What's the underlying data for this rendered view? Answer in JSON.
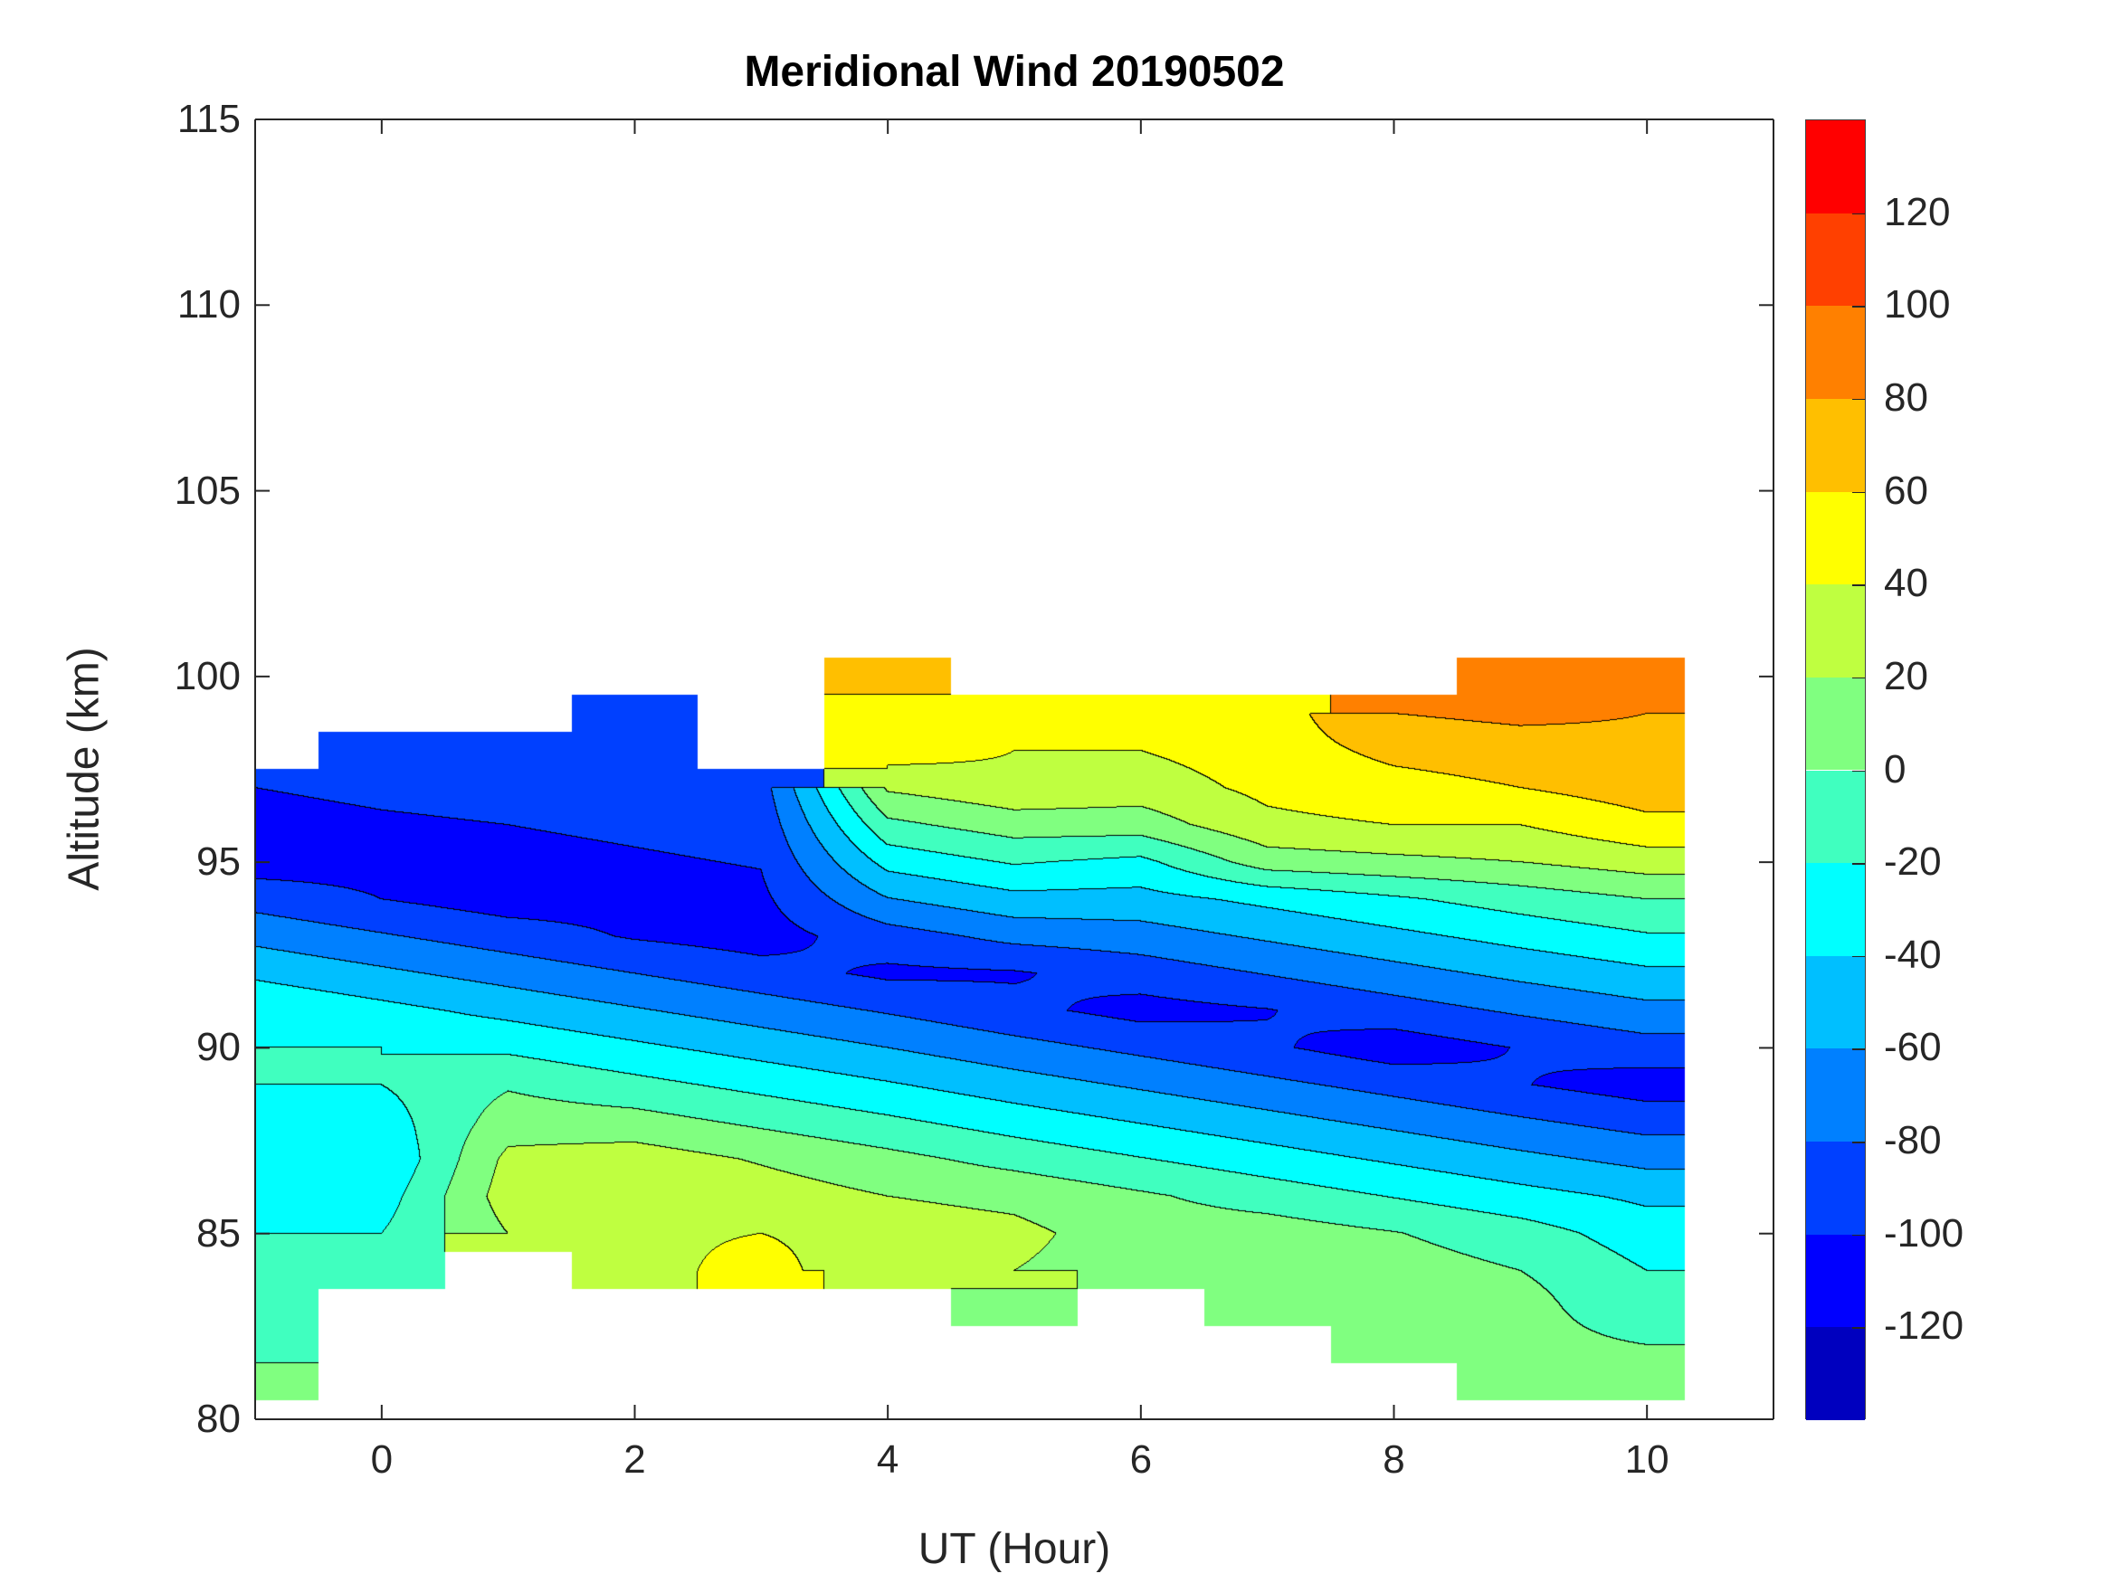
{
  "chart_data": {
    "type": "heatmap",
    "subtype": "filled-contour",
    "title": "Meridional Wind 20190502",
    "xlabel": "UT (Hour)",
    "ylabel": "Altitude (km)",
    "xlim": [
      -1,
      11
    ],
    "ylim": [
      80,
      115
    ],
    "xticks": [
      0,
      2,
      4,
      6,
      8,
      10
    ],
    "xtick_labels": [
      "0",
      "2",
      "4",
      "6",
      "8",
      "10"
    ],
    "yticks": [
      80,
      85,
      90,
      95,
      100,
      105,
      110,
      115
    ],
    "ytick_labels": [
      "80",
      "85",
      "90",
      "95",
      "100",
      "105",
      "110",
      "115"
    ],
    "grid": false,
    "colorbar": {
      "range": [
        -140,
        140
      ],
      "levels": [
        -140,
        -120,
        -100,
        -80,
        -60,
        -40,
        -20,
        0,
        20,
        40,
        60,
        80,
        100,
        120,
        140
      ],
      "ticks": [
        -120,
        -100,
        -80,
        -60,
        -40,
        -20,
        0,
        20,
        40,
        60,
        80,
        100,
        120
      ],
      "tick_labels": [
        "-120",
        "-100",
        "-80",
        "-60",
        "-40",
        "-20",
        "0",
        "20",
        "40",
        "60",
        "80",
        "100",
        "120"
      ],
      "colors": [
        "#0000BF",
        "#0000FF",
        "#0040FF",
        "#0080FF",
        "#00BFFF",
        "#00FFFF",
        "#40FFBF",
        "#80FF80",
        "#BFFF40",
        "#FFFF00",
        "#FFBF00",
        "#FF8000",
        "#FF4000",
        "#FF0000"
      ],
      "location": "right"
    },
    "data_xmax": 10.3,
    "altitudes": [
      101,
      100,
      99,
      98,
      97,
      96,
      95,
      94,
      93,
      92,
      91,
      90,
      89,
      88,
      87,
      86,
      85,
      84,
      83,
      82,
      81
    ],
    "columns": [
      {
        "ut": -1,
        "values": [
          null,
          null,
          null,
          null,
          -100,
          -105,
          -110,
          -88,
          -66,
          -44,
          -22,
          -20,
          -20,
          -20,
          -30,
          -20,
          -20,
          -20,
          -20,
          -20,
          0
        ]
      },
      {
        "ut": 0,
        "values": [
          null,
          null,
          null,
          -92,
          -97,
          -102,
          -107,
          -100,
          -78,
          -56,
          -34,
          -20,
          -20,
          -30,
          -40,
          -30,
          -20,
          -20,
          null,
          null,
          null
        ]
      },
      {
        "ut": 1,
        "values": [
          null,
          null,
          null,
          -90,
          -95,
          -100,
          -105,
          -110,
          -90,
          -68,
          -46,
          -24,
          -2,
          10,
          25,
          30,
          20,
          null,
          null,
          null,
          null
        ]
      },
      {
        "ut": 2,
        "values": [
          null,
          null,
          -82,
          -87,
          -92,
          -97,
          -102,
          -107,
          -102,
          -80,
          -58,
          -36,
          -14,
          8,
          30,
          40,
          35,
          30,
          null,
          null,
          null
        ]
      },
      {
        "ut": 3,
        "values": [
          null,
          null,
          null,
          null,
          -89,
          -94,
          -99,
          -104,
          -109,
          -92,
          -70,
          -48,
          -26,
          -4,
          18,
          30,
          40,
          50,
          null,
          null,
          null
        ]
      },
      {
        "ut": 4,
        "values": [
          null,
          60,
          55,
          51,
          23,
          -5,
          -33,
          -61,
          -89,
          -104,
          -82,
          -60,
          -38,
          -16,
          6,
          20,
          30,
          20,
          null,
          null,
          null
        ]
      },
      {
        "ut": 5,
        "values": [
          null,
          null,
          45,
          40,
          35,
          10,
          -18,
          -46,
          -74,
          -102,
          -95,
          -73,
          -51,
          -29,
          -7,
          15,
          25,
          20,
          10,
          null,
          null
        ]
      },
      {
        "ut": 6,
        "values": [
          null,
          null,
          40,
          40,
          30,
          10,
          -25,
          -47,
          -69,
          -91,
          -107,
          -85,
          -63,
          -41,
          -19,
          3,
          10,
          10,
          null,
          null,
          null
        ]
      },
      {
        "ut": 7,
        "values": [
          null,
          null,
          50,
          50,
          45,
          35,
          10,
          -35,
          -57,
          -79,
          -101,
          -97,
          -75,
          -53,
          -31,
          -9,
          10,
          10,
          10,
          null,
          null
        ]
      },
      {
        "ut": 8,
        "values": [
          null,
          null,
          80,
          65,
          53,
          40,
          15,
          -23,
          -45,
          -67,
          -89,
          -111,
          -87,
          -65,
          -43,
          -21,
          1,
          10,
          10,
          0,
          null
        ]
      },
      {
        "ut": 9,
        "values": [
          null,
          90,
          85,
          70,
          60,
          40,
          20,
          -11,
          -33,
          -55,
          -77,
          -99,
          -99,
          -77,
          -55,
          -33,
          -11,
          0,
          10,
          10,
          0
        ]
      },
      {
        "ut": 10,
        "values": [
          null,
          85,
          80,
          75,
          70,
          55,
          30,
          0,
          -22,
          -44,
          -66,
          -88,
          -110,
          -88,
          -66,
          -44,
          -30,
          -20,
          -20,
          0,
          0
        ]
      }
    ]
  }
}
